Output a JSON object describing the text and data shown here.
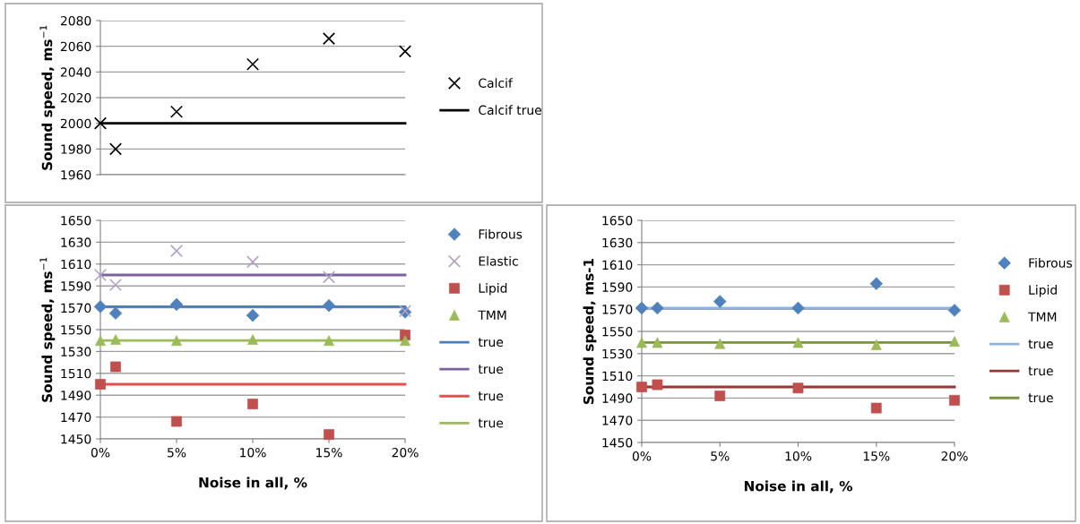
{
  "chart_data": [
    {
      "type": "scatter",
      "ylabel": "Sound speed, ms$^{−1}$",
      "xlim": [
        0,
        20
      ],
      "ylim": [
        1960,
        2080
      ],
      "yticks": [
        1960,
        1980,
        2000,
        2020,
        2040,
        2060,
        2080
      ],
      "tick_labels": "y",
      "grid": "y",
      "legend": "right",
      "series": [
        {
          "name": "Calcif",
          "marker": "cross",
          "color": "#000000",
          "x": [
            0,
            1,
            5,
            10,
            15,
            20
          ],
          "values": [
            2000,
            1980,
            2009,
            2046,
            2066,
            2056
          ]
        },
        {
          "name": "Calcif true",
          "type": "line",
          "marker": "none",
          "color": "#000000",
          "x": [
            0,
            20
          ],
          "values": [
            2000,
            2000
          ]
        }
      ]
    },
    {
      "type": "scatter",
      "ylabel": "Sound speed, ms$^{−1}$",
      "xlabel": "Noise in all, %",
      "xlim": [
        0,
        20
      ],
      "xticks": [
        {
          "value": 0,
          "label": "0%"
        },
        {
          "value": 5,
          "label": "5%"
        },
        {
          "value": 10,
          "label": "10%"
        },
        {
          "value": 15,
          "label": "15%"
        },
        {
          "value": 20,
          "label": "20%"
        }
      ],
      "ylim": [
        1450,
        1650
      ],
      "yticks": [
        1450,
        1470,
        1490,
        1510,
        1530,
        1550,
        1570,
        1590,
        1610,
        1630,
        1650
      ],
      "grid": "y",
      "legend": "right",
      "series": [
        {
          "name": "Fibrous",
          "marker": "diamond",
          "color": "#4f81bd",
          "x": [
            0,
            1,
            5,
            10,
            15,
            20
          ],
          "values": [
            1571,
            1565,
            1573,
            1563,
            1572,
            1566
          ]
        },
        {
          "name": "Elastic",
          "marker": "cross",
          "color": "#b3a2c7",
          "x": [
            0,
            1,
            5,
            10,
            15,
            20
          ],
          "values": [
            1600,
            1591,
            1622,
            1612,
            1598,
            1567
          ]
        },
        {
          "name": "Lipid",
          "marker": "square",
          "color": "#c0504d",
          "x": [
            0,
            1,
            5,
            10,
            15,
            20
          ],
          "values": [
            1500,
            1516,
            1466,
            1482,
            1454,
            1545
          ]
        },
        {
          "name": "TMM",
          "marker": "triangle",
          "color": "#9bbb59",
          "x": [
            0,
            1,
            5,
            10,
            15,
            20
          ],
          "values": [
            1540,
            1541,
            1540,
            1541,
            1540,
            1540
          ]
        },
        {
          "name": "true",
          "type": "line",
          "marker": "none",
          "color": "#4a7ebb",
          "x": [
            0,
            20
          ],
          "values": [
            1571,
            1571
          ]
        },
        {
          "name": "true",
          "type": "line",
          "marker": "none",
          "color": "#7d60a0",
          "x": [
            0,
            20
          ],
          "values": [
            1600,
            1600
          ]
        },
        {
          "name": "true",
          "type": "line",
          "marker": "none",
          "color": "#e0504d",
          "x": [
            0,
            20
          ],
          "values": [
            1500,
            1500
          ]
        },
        {
          "name": "true",
          "type": "line",
          "marker": "none",
          "color": "#9bbb59",
          "x": [
            0,
            20
          ],
          "values": [
            1540,
            1540
          ]
        }
      ]
    },
    {
      "type": "scatter",
      "ylabel": "Sound speed, ms-1",
      "xlabel": "Noise in all, %",
      "xlim": [
        0,
        20
      ],
      "xticks": [
        {
          "value": 0,
          "label": "0%"
        },
        {
          "value": 5,
          "label": "5%"
        },
        {
          "value": 10,
          "label": "10%"
        },
        {
          "value": 15,
          "label": "15%"
        },
        {
          "value": 20,
          "label": "20%"
        }
      ],
      "ylim": [
        1450,
        1650
      ],
      "yticks": [
        1450,
        1470,
        1490,
        1510,
        1530,
        1550,
        1570,
        1590,
        1610,
        1630,
        1650
      ],
      "grid": "y",
      "legend": "right",
      "series": [
        {
          "name": "Fibrous",
          "marker": "diamond",
          "color": "#4f81bd",
          "x": [
            0,
            1,
            5,
            10,
            15,
            20
          ],
          "values": [
            1571,
            1571,
            1577,
            1571,
            1593,
            1569
          ]
        },
        {
          "name": "Lipid",
          "marker": "square",
          "color": "#c0504d",
          "x": [
            0,
            1,
            5,
            10,
            15,
            20
          ],
          "values": [
            1500,
            1502,
            1492,
            1499,
            1481,
            1488
          ]
        },
        {
          "name": "TMM",
          "marker": "triangle",
          "color": "#9bbb59",
          "x": [
            0,
            1,
            5,
            10,
            15,
            20
          ],
          "values": [
            1540,
            1540,
            1539,
            1540,
            1538,
            1541
          ]
        },
        {
          "name": "true",
          "type": "line",
          "marker": "none",
          "color": "#8eb4e3",
          "x": [
            0,
            20
          ],
          "values": [
            1571,
            1571
          ]
        },
        {
          "name": "true",
          "type": "line",
          "marker": "none",
          "color": "#953735",
          "x": [
            0,
            20
          ],
          "values": [
            1500,
            1500
          ]
        },
        {
          "name": "true",
          "type": "line",
          "marker": "none",
          "color": "#77933c",
          "x": [
            0,
            20
          ],
          "values": [
            1540,
            1540
          ]
        }
      ]
    }
  ]
}
